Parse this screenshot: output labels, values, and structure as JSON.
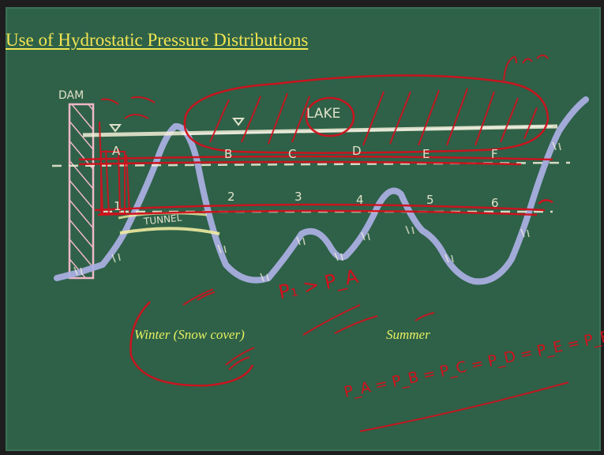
{
  "board": {
    "title": "Use of Hydrostatic Pressure Distributions",
    "colors": {
      "board": "#2e6148",
      "title": "#f2e552",
      "caption": "#e6f060",
      "chalk_white": "#f4f0d8",
      "terrain": "#a9aee0",
      "dam": "#f0b8c8",
      "red_marker": "#d1101c"
    }
  },
  "chalk_labels": {
    "dam": "DAM",
    "lake": "LAKE",
    "tunnel": "TUNNEL",
    "upper_points": [
      "A",
      "B",
      "C",
      "D",
      "E",
      "F"
    ],
    "lower_points": [
      "1",
      "2",
      "3",
      "4",
      "5",
      "6"
    ]
  },
  "captions": {
    "winter": "Winter (Snow cover)",
    "summer": "Summer"
  },
  "annotations": {
    "inequality": "P₁ > P_A",
    "equality": "P_A = P_B = P_C = P_D = P_E = P_F"
  }
}
